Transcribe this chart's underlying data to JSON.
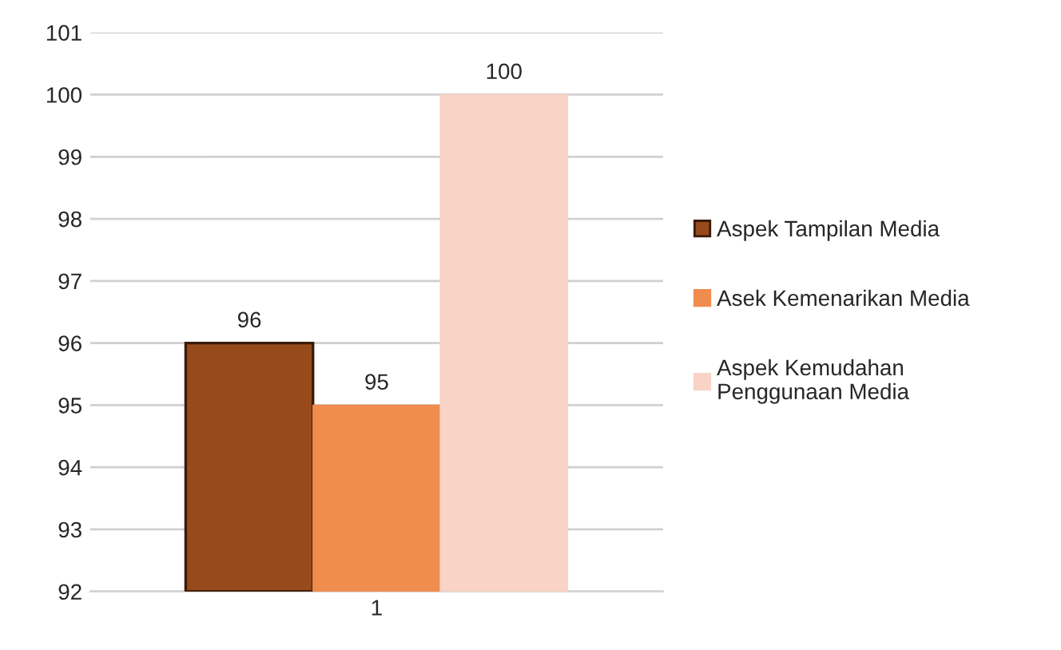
{
  "chart_data": {
    "type": "bar",
    "categories": [
      "1"
    ],
    "series": [
      {
        "name": "Aspek Tampilan Media",
        "color": "#974b1c",
        "values": [
          96
        ]
      },
      {
        "name": "Asek Kemenarikan Media",
        "color": "#f08c4e",
        "values": [
          95
        ]
      },
      {
        "name": "Aspek Kemudahan\nPenggunaan Media",
        "color": "#f8d3c6",
        "values": [
          100
        ]
      }
    ],
    "ylim": [
      92,
      101
    ],
    "yticks": [
      92,
      93,
      94,
      95,
      96,
      97,
      98,
      99,
      100,
      101
    ],
    "grid": "y",
    "legend": "right",
    "data_labels": true
  }
}
